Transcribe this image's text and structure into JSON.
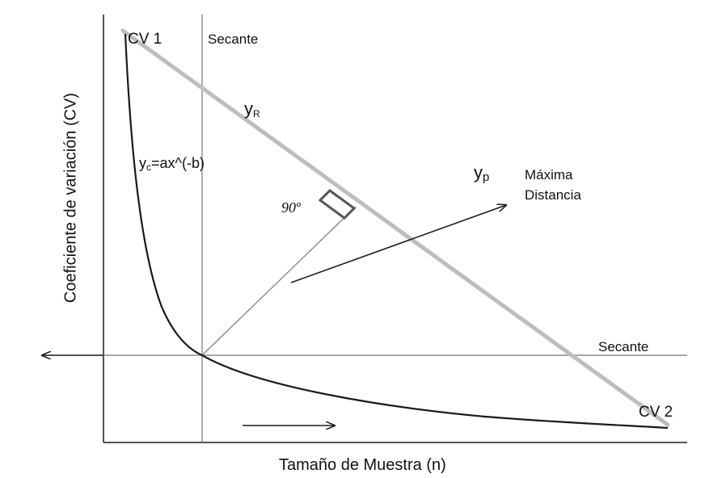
{
  "labels": {
    "cv1": "CV 1",
    "cv2": "CV 2",
    "secant_vertical": "Secante",
    "secant_horizontal": "Secante",
    "yr_main": "y",
    "yr_sub": "R",
    "yp_main": "y",
    "yp_sub": "p",
    "yc_main": "y",
    "yc_sub": "c",
    "yc_formula": "=ax^(-b)",
    "angle": "90º",
    "max_distance_line1": "Máxima",
    "max_distance_line2": "Distancia",
    "x_axis": "Tamaño de Muestra (n)",
    "y_axis": "Coeficiente de variación (CV)"
  },
  "colors": {
    "axis": "#1a1a1a",
    "secant": "#8a8a8a",
    "chord": "#bdbdbd",
    "curve": "#1a1a1a",
    "arrow": "#1a1a1a",
    "right_angle": "#555555"
  }
}
